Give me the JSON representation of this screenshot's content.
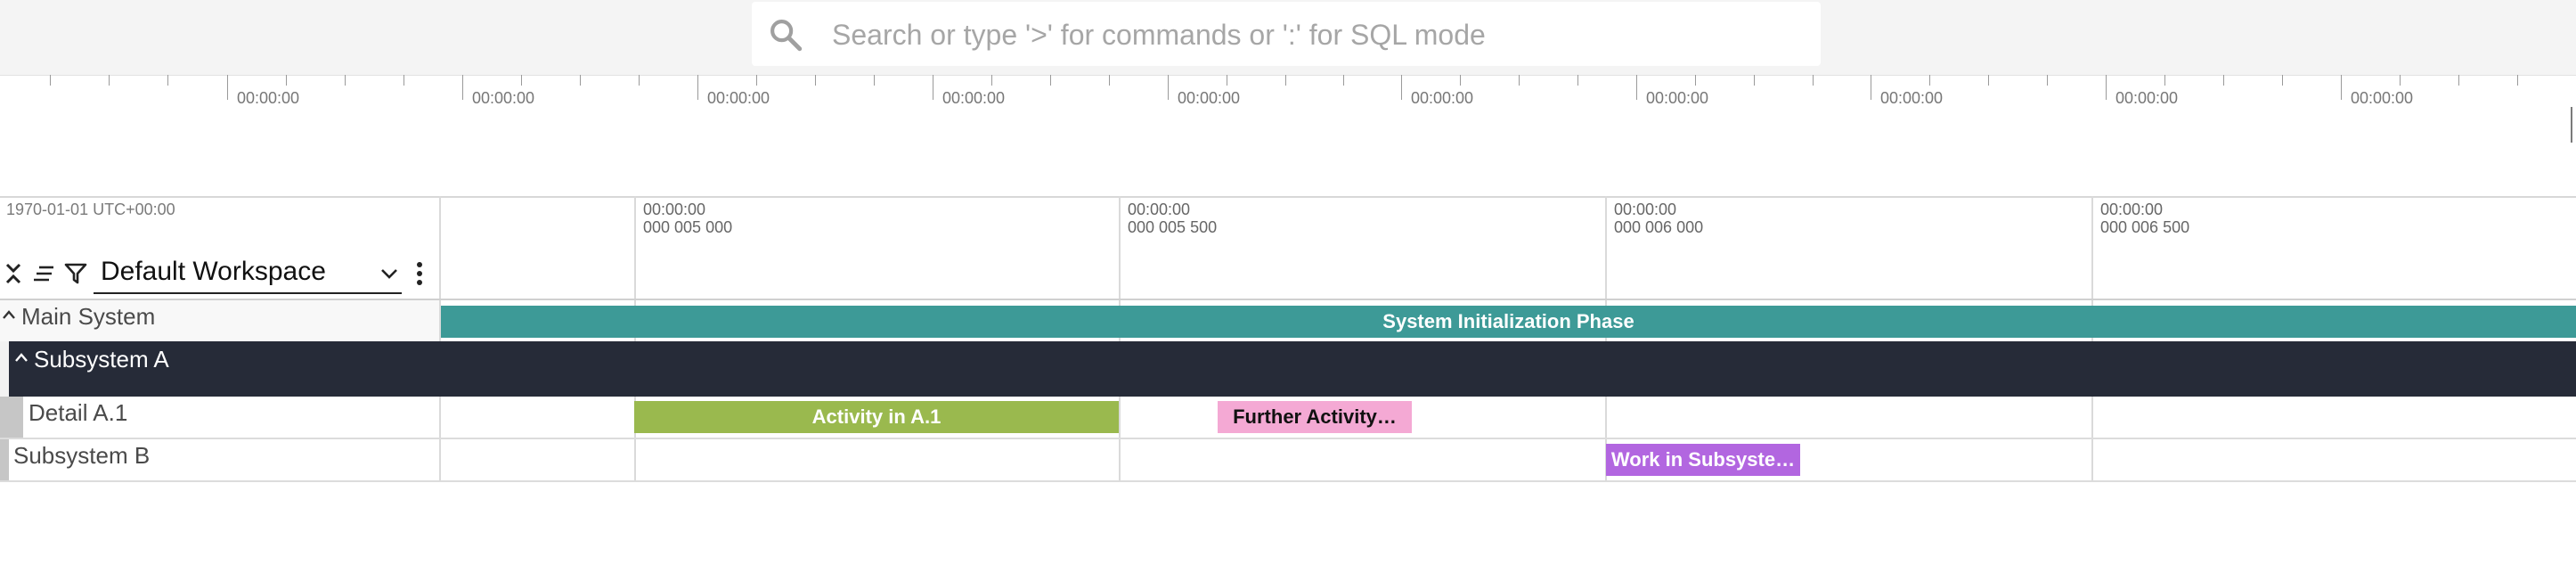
{
  "search": {
    "placeholder": "Search or type '>' for commands or ':' for SQL mode",
    "icon": "search-icon"
  },
  "overview": {
    "labels": [
      "00:00:00",
      "00:00:00",
      "00:00:00",
      "00:00:00",
      "00:00:00",
      "00:00:00",
      "00:00:00",
      "00:00:00",
      "00:00:00",
      "00:00:00"
    ]
  },
  "timeline": {
    "origin": "1970-01-01 UTC+00:00",
    "ticks": [
      {
        "time": "00:00:00",
        "sub": "000 005 000"
      },
      {
        "time": "00:00:00",
        "sub": "000 005 500"
      },
      {
        "time": "00:00:00",
        "sub": "000 006 000"
      },
      {
        "time": "00:00:00",
        "sub": "000 006 500"
      }
    ]
  },
  "toolbar": {
    "workspace": "Default Workspace",
    "icons": [
      "collapse-all-icon",
      "sort-icon",
      "filter-icon",
      "chevron-down-icon",
      "more-vertical-icon"
    ]
  },
  "tracks": {
    "main": {
      "name": "Main System"
    },
    "subsystem_a": {
      "name": "Subsystem A"
    },
    "detail_a1": {
      "name": "Detail A.1"
    },
    "subsystem_b": {
      "name": "Subsystem B"
    }
  },
  "slices": {
    "init": {
      "label": "System Initialization Phase",
      "color": "#3d9a97"
    },
    "activity_a1": {
      "label": "Activity in A.1",
      "color": "#9ab94e"
    },
    "further": {
      "label": "Further Activity…",
      "color": "#f4a9d4"
    },
    "work_b": {
      "label": "Work in Subsyste…",
      "color": "#b266e0"
    }
  },
  "colors": {
    "selected_track": "#262b38",
    "grid": "#dadada"
  }
}
